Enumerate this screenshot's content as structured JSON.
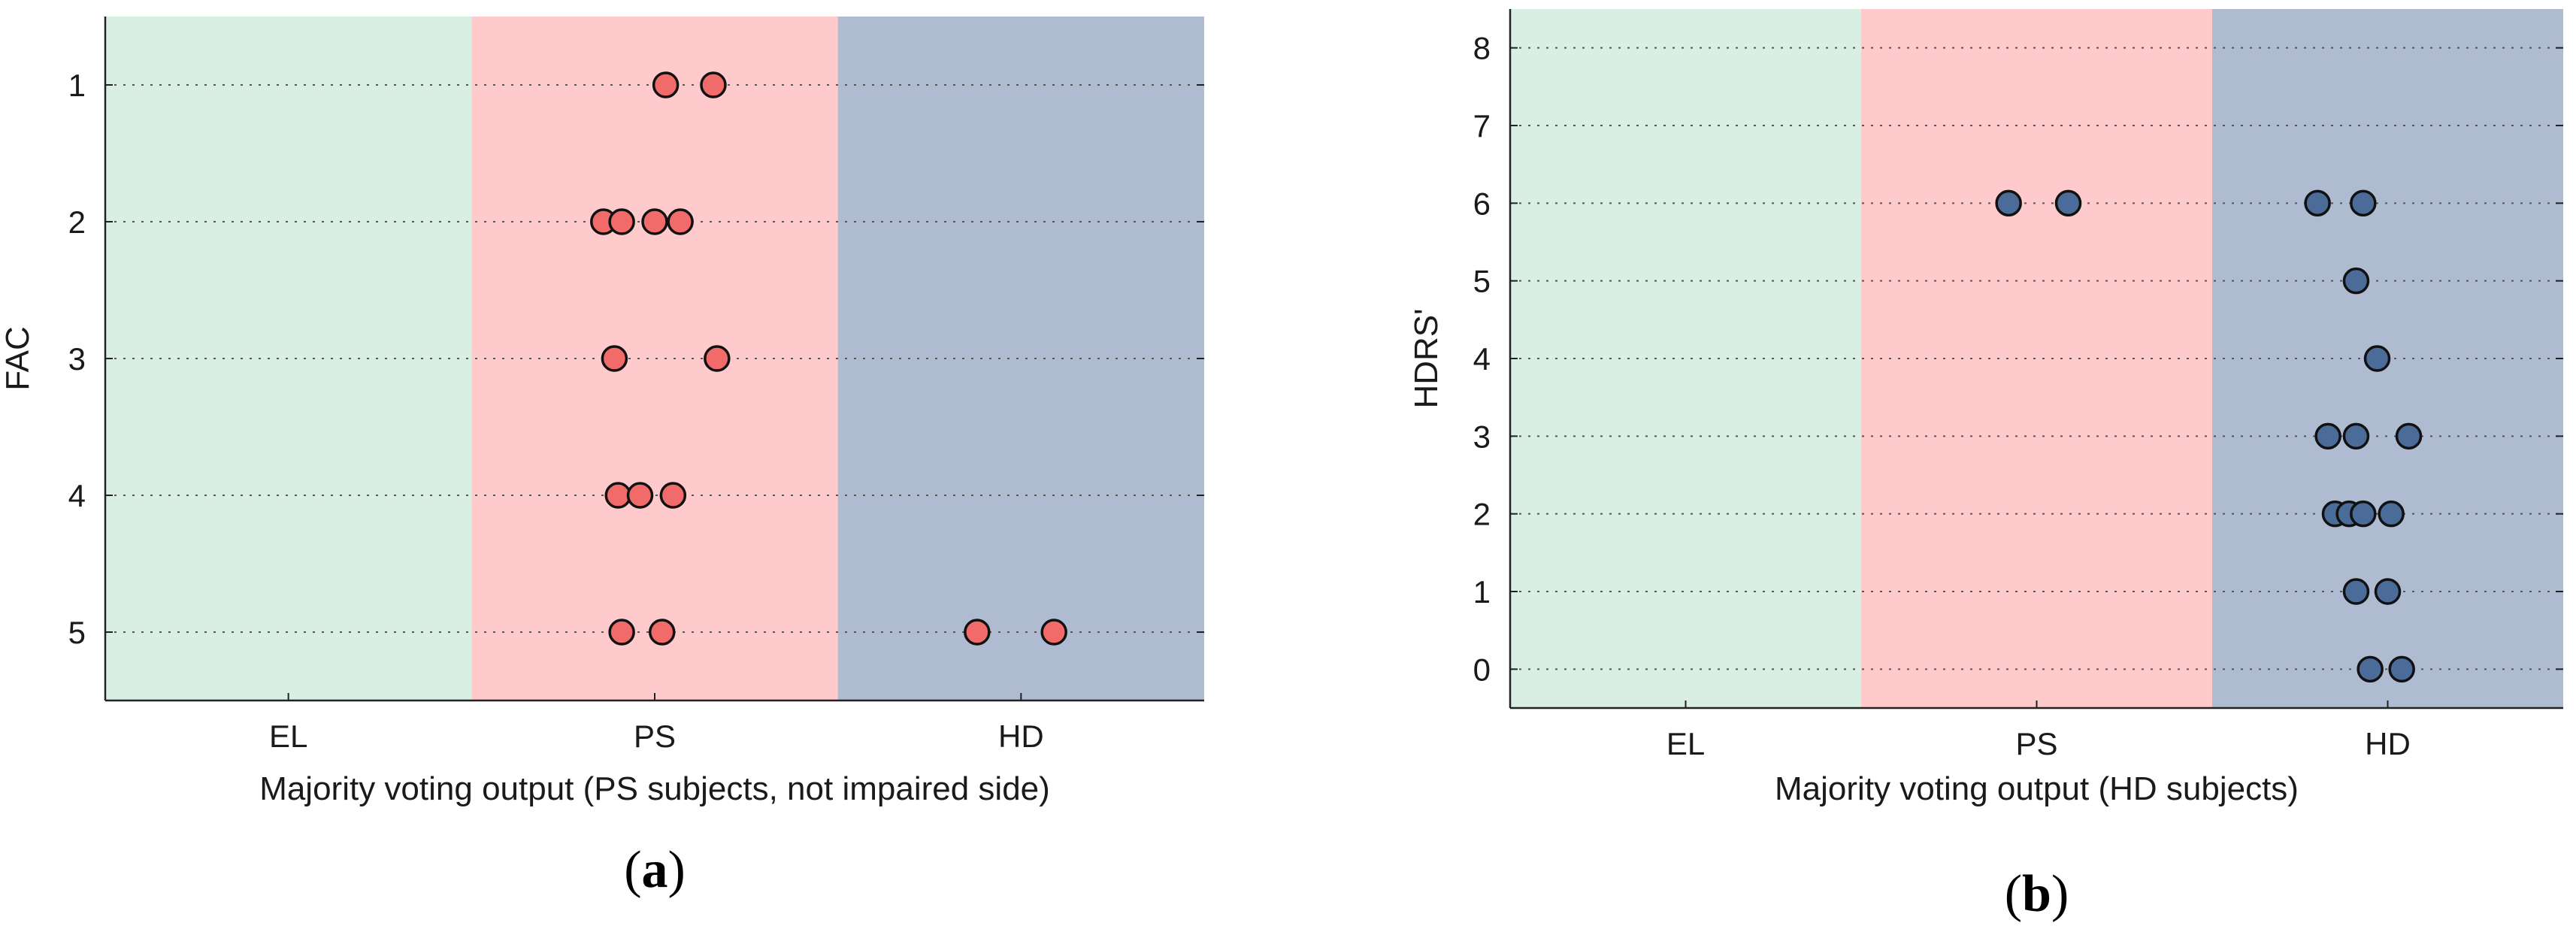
{
  "colors": {
    "EL": "#d9efe3",
    "PS": "#fecacb",
    "HD": "#aebbd1",
    "marker_a": "#f26b6b",
    "marker_b": "#4b6b99",
    "marker_edge": "#111111",
    "grid": "#555555"
  },
  "chart_data": [
    {
      "type": "scatter",
      "panel_label": {
        "open": "(",
        "letter": "a",
        "close": ")"
      },
      "xlabel": "Majority voting output (PS subjects, not impaired side)",
      "ylabel": "FAC",
      "categories": [
        "EL",
        "PS",
        "HD"
      ],
      "y_ticks": [
        1,
        2,
        3,
        4,
        5
      ],
      "ylim": [
        0.5,
        5.5
      ],
      "y_reversed": true,
      "grid": "horizontal-dotted",
      "points": [
        {
          "category": "PS",
          "x_offset": 0.03,
          "y": 1
        },
        {
          "category": "PS",
          "x_offset": 0.16,
          "y": 1
        },
        {
          "category": "PS",
          "x_offset": -0.14,
          "y": 2
        },
        {
          "category": "PS",
          "x_offset": -0.09,
          "y": 2
        },
        {
          "category": "PS",
          "x_offset": 0.0,
          "y": 2
        },
        {
          "category": "PS",
          "x_offset": 0.07,
          "y": 2
        },
        {
          "category": "PS",
          "x_offset": -0.11,
          "y": 3
        },
        {
          "category": "PS",
          "x_offset": 0.17,
          "y": 3
        },
        {
          "category": "PS",
          "x_offset": -0.1,
          "y": 4
        },
        {
          "category": "PS",
          "x_offset": -0.04,
          "y": 4
        },
        {
          "category": "PS",
          "x_offset": 0.05,
          "y": 4
        },
        {
          "category": "PS",
          "x_offset": -0.09,
          "y": 5
        },
        {
          "category": "PS",
          "x_offset": 0.02,
          "y": 5
        },
        {
          "category": "HD",
          "x_offset": -0.12,
          "y": 5
        },
        {
          "category": "HD",
          "x_offset": 0.09,
          "y": 5
        }
      ]
    },
    {
      "type": "scatter",
      "panel_label": {
        "open": "(",
        "letter": "b",
        "close": ")"
      },
      "xlabel": "Majority voting output (HD subjects)",
      "ylabel": "HDRS'",
      "categories": [
        "EL",
        "PS",
        "HD"
      ],
      "y_ticks": [
        0,
        1,
        2,
        3,
        4,
        5,
        6,
        7,
        8
      ],
      "ylim": [
        -0.5,
        8.5
      ],
      "y_reversed": false,
      "grid": "horizontal-dotted",
      "points": [
        {
          "category": "PS",
          "x_offset": -0.08,
          "y": 6
        },
        {
          "category": "PS",
          "x_offset": 0.09,
          "y": 6
        },
        {
          "category": "HD",
          "x_offset": -0.2,
          "y": 6
        },
        {
          "category": "HD",
          "x_offset": -0.07,
          "y": 6
        },
        {
          "category": "HD",
          "x_offset": -0.09,
          "y": 5
        },
        {
          "category": "HD",
          "x_offset": -0.03,
          "y": 4
        },
        {
          "category": "HD",
          "x_offset": -0.17,
          "y": 3
        },
        {
          "category": "HD",
          "x_offset": -0.09,
          "y": 3
        },
        {
          "category": "HD",
          "x_offset": 0.06,
          "y": 3
        },
        {
          "category": "HD",
          "x_offset": -0.15,
          "y": 2
        },
        {
          "category": "HD",
          "x_offset": -0.11,
          "y": 2
        },
        {
          "category": "HD",
          "x_offset": -0.07,
          "y": 2
        },
        {
          "category": "HD",
          "x_offset": 0.01,
          "y": 2
        },
        {
          "category": "HD",
          "x_offset": -0.09,
          "y": 1
        },
        {
          "category": "HD",
          "x_offset": 0.0,
          "y": 1
        },
        {
          "category": "HD",
          "x_offset": -0.05,
          "y": 0
        },
        {
          "category": "HD",
          "x_offset": 0.04,
          "y": 0
        }
      ]
    }
  ]
}
